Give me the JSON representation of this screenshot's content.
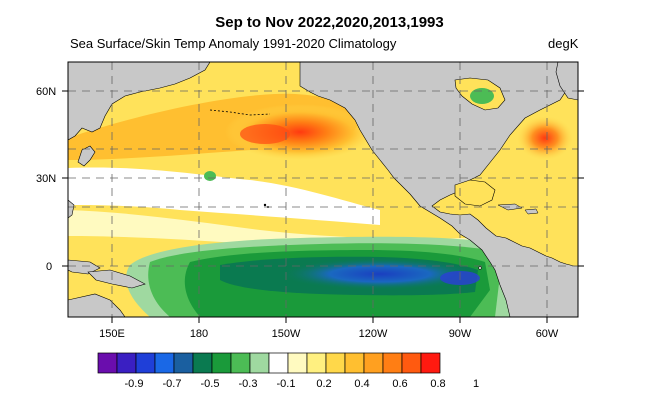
{
  "title": "Sep to Nov 2022,2020,2013,1993",
  "subtitle": "Sea Surface/Skin Temp Anomaly  1991-2020 Climatology",
  "units": "degK",
  "lat_labels": [
    "60N",
    "30N",
    "0"
  ],
  "lon_labels": [
    "150E",
    "180",
    "150W",
    "120W",
    "90W",
    "60W"
  ],
  "colorbar": {
    "colors": [
      "#6a0dad",
      "#3a1fc2",
      "#1f3fd8",
      "#1a68e6",
      "#1a5fa0",
      "#0a7a50",
      "#1a9a3a",
      "#4cbc55",
      "#9fd9a0",
      "#ffffff",
      "#fffac0",
      "#fff080",
      "#ffd84a",
      "#ffbf30",
      "#ffa020",
      "#ff7e14",
      "#ff5a10",
      "#ff1a10"
    ],
    "tick_labels": [
      "-0.9",
      "-0.7",
      "-0.5",
      "-0.3",
      "-0.1",
      "0.2",
      "0.4",
      "0.6",
      "0.8",
      "1"
    ]
  },
  "colors": {
    "land": "#c8c8c8",
    "background": "#ffffff"
  }
}
